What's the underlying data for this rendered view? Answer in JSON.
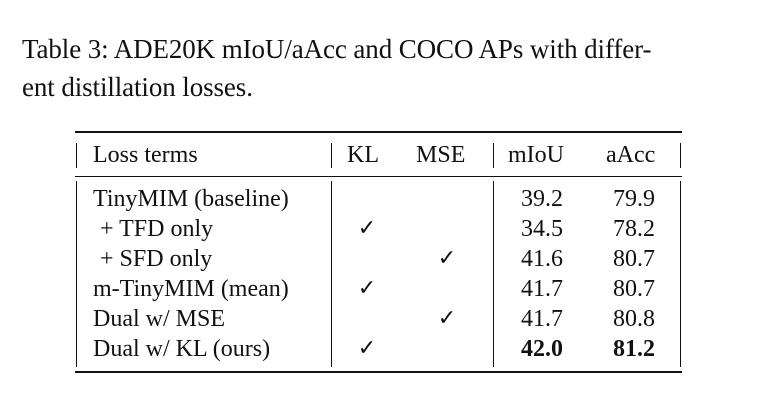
{
  "caption": {
    "line1": "Table 3: ADE20K mIoU/aAcc and COCO APs with differ-",
    "line2": "ent distillation losses."
  },
  "table": {
    "headers": {
      "loss_terms": "Loss terms",
      "kl": "KL",
      "mse": "MSE",
      "miou": "mIoU",
      "aacc": "aAcc"
    },
    "rows": [
      {
        "name": "TinyMIM (baseline)",
        "kl": "",
        "mse": "",
        "miou": "39.2",
        "aacc": "79.9"
      },
      {
        "name": "+ TFD only",
        "kl": "✓",
        "mse": "",
        "miou": "34.5",
        "aacc": "78.2"
      },
      {
        "name": "+ SFD only",
        "kl": "",
        "mse": "✓",
        "miou": "41.6",
        "aacc": "80.7"
      },
      {
        "name": "m-TinyMIM (mean)",
        "kl": "✓",
        "mse": "",
        "miou": "41.7",
        "aacc": "80.7"
      },
      {
        "name": "Dual w/ MSE",
        "kl": "",
        "mse": "✓",
        "miou": "41.7",
        "aacc": "80.8"
      },
      {
        "name": "Dual w/ KL (ours)",
        "kl": "✓",
        "mse": "",
        "miou": "42.0",
        "aacc": "81.2"
      }
    ]
  }
}
